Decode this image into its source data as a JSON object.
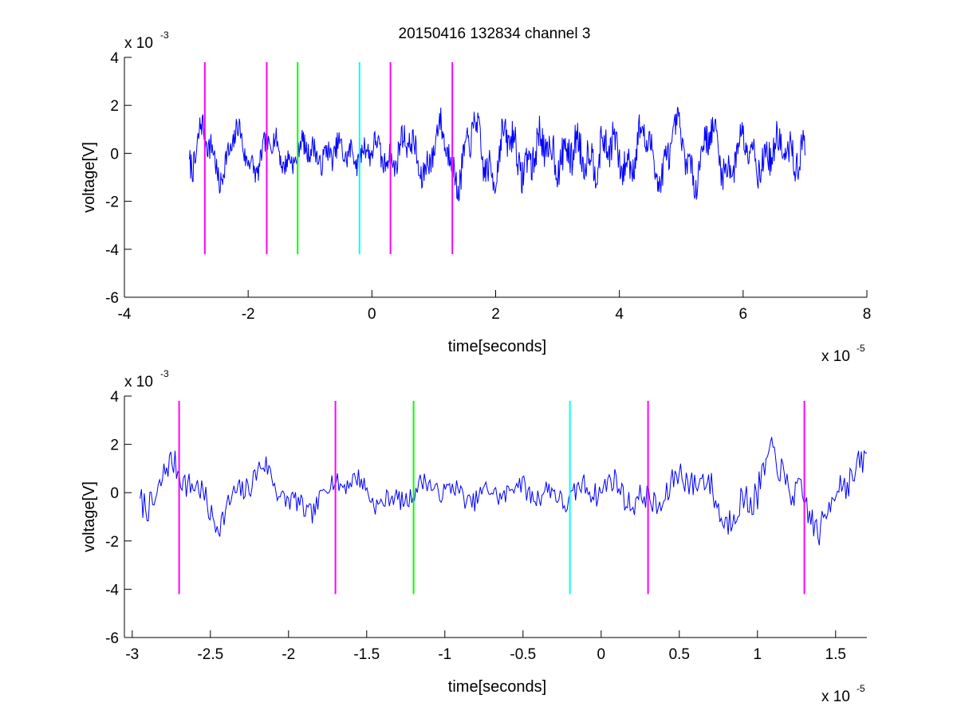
{
  "figure": {
    "title": "20150416 132834 channel 3"
  },
  "chart_data": [
    {
      "type": "line",
      "title": "20150416 132834 channel 3",
      "xlabel": "time[seconds]",
      "ylabel": "voltage[V]",
      "x_exponent_label": "x 10",
      "x_exponent": "-5",
      "y_exponent_label": "x 10",
      "y_exponent": "-3",
      "xlim": [
        -4,
        8
      ],
      "ylim": [
        -6,
        4
      ],
      "xticks": [
        "-4",
        "-2",
        "0",
        "2",
        "4",
        "6",
        "8"
      ],
      "yticks": [
        "4",
        "2",
        "0",
        "-2",
        "-4",
        "-6"
      ],
      "grid": false,
      "series_color": "#0000ff",
      "signal": {
        "x_start": -2.95,
        "x_end": 7.0,
        "points": 1000,
        "seed": 7,
        "envelope": [
          [
            -2.95,
            1.2
          ],
          [
            -1.8,
            0.8
          ],
          [
            0.3,
            1.0
          ],
          [
            2.0,
            1.3
          ],
          [
            3.0,
            1.5
          ],
          [
            5.0,
            1.1
          ],
          [
            7.0,
            1.3
          ]
        ]
      },
      "markers": [
        {
          "x": -2.7,
          "color": "#ff00ff"
        },
        {
          "x": -1.7,
          "color": "#ff00ff"
        },
        {
          "x": -1.2,
          "color": "#00ff00"
        },
        {
          "x": -0.2,
          "color": "#00ffff"
        },
        {
          "x": 0.3,
          "color": "#ff00ff"
        },
        {
          "x": 1.3,
          "color": "#ff00ff"
        }
      ],
      "marker_range": [
        -4.2,
        3.8
      ]
    },
    {
      "type": "line",
      "xlabel": "time[seconds]",
      "ylabel": "voltage[V]",
      "x_exponent_label": "x 10",
      "x_exponent": "-5",
      "y_exponent_label": "x 10",
      "y_exponent": "-3",
      "xlim": [
        -3.05,
        1.7
      ],
      "ylim": [
        -6,
        4
      ],
      "xticks": [
        "-3",
        "-2.5",
        "-2",
        "-1.5",
        "-1",
        "-0.5",
        "0",
        "0.5",
        "1",
        "1.5"
      ],
      "yticks": [
        "4",
        "2",
        "0",
        "-2",
        "-4",
        "-6"
      ],
      "grid": false,
      "series_color": "#0000ff",
      "signal": {
        "x_start": -2.95,
        "x_end": 1.7,
        "points": 520,
        "seed": 7,
        "envelope": [
          [
            -2.95,
            1.2
          ],
          [
            -1.8,
            0.8
          ],
          [
            -1.0,
            0.7
          ],
          [
            0.3,
            1.0
          ],
          [
            1.0,
            1.3
          ],
          [
            1.7,
            1.2
          ]
        ]
      },
      "markers": [
        {
          "x": -2.7,
          "color": "#ff00ff"
        },
        {
          "x": -1.7,
          "color": "#ff00ff"
        },
        {
          "x": -1.2,
          "color": "#00ff00"
        },
        {
          "x": -0.2,
          "color": "#00ffff"
        },
        {
          "x": 0.3,
          "color": "#ff00ff"
        },
        {
          "x": 1.3,
          "color": "#ff00ff"
        }
      ],
      "marker_range": [
        -4.2,
        3.8
      ]
    }
  ]
}
